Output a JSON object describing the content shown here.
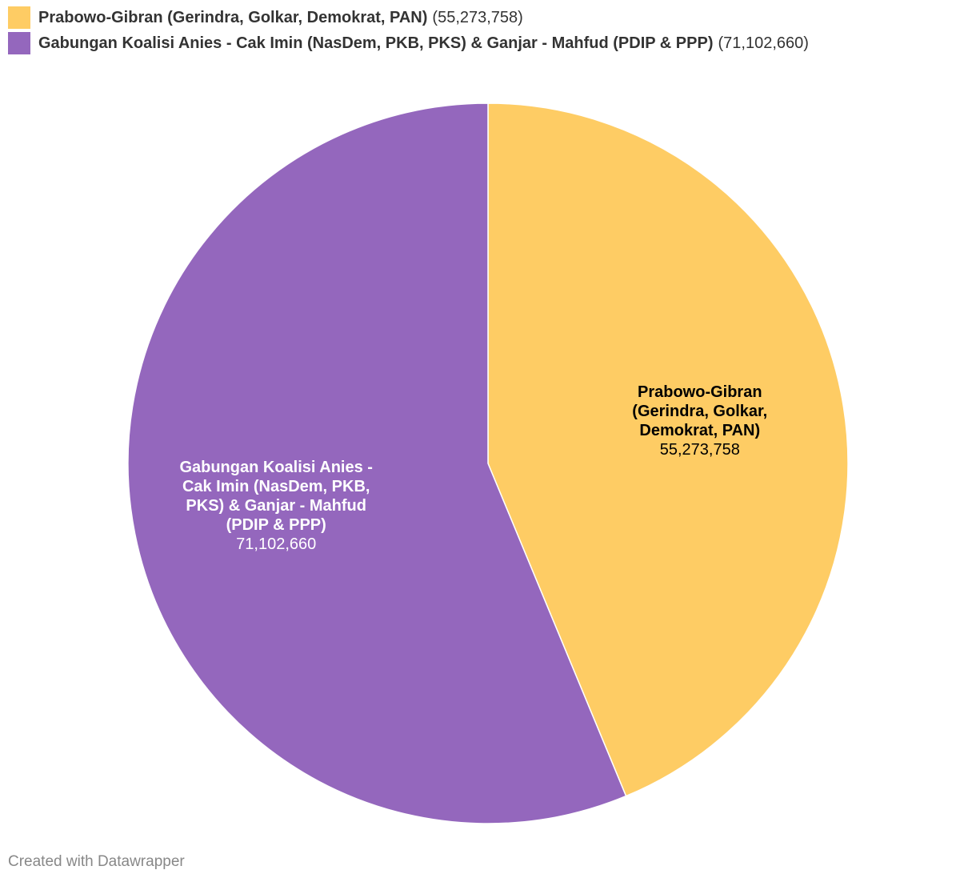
{
  "chart_data": {
    "type": "pie",
    "categories": [
      "Prabowo-Gibran (Gerindra, Golkar, Demokrat, PAN)",
      "Gabungan Koalisi Anies - Cak Imin (NasDem, PKB, PKS) & Ganjar - Mahfud (PDIP & PPP)"
    ],
    "values": [
      55273758,
      71102660
    ],
    "value_labels": [
      "55,273,758",
      "71,102,660"
    ],
    "legend_value_labels": [
      "(55,273,758)",
      "(71,102,660)"
    ],
    "colors": [
      "#fecc64",
      "#9467bd"
    ],
    "label_colors": [
      "#000000",
      "#ffffff"
    ],
    "credit": "Created with Datawrapper"
  }
}
